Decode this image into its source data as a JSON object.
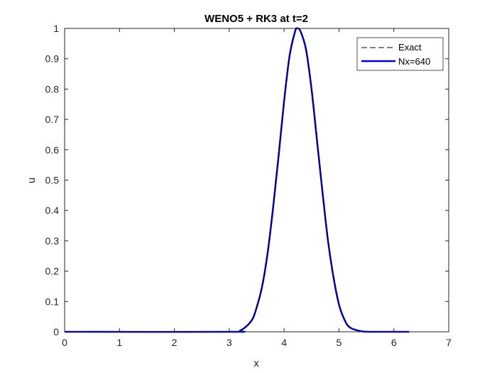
{
  "chart_data": {
    "type": "line",
    "title": "WENO5 + RK3 at t=2",
    "xlabel": "x",
    "ylabel": "u",
    "xlim": [
      0,
      7
    ],
    "ylim": [
      0,
      1
    ],
    "xticks": [
      "0",
      "1",
      "2",
      "3",
      "4",
      "5",
      "6",
      "7"
    ],
    "yticks": [
      "0",
      "0.1",
      "0.2",
      "0.3",
      "0.4",
      "0.5",
      "0.6",
      "0.7",
      "0.8",
      "0.9",
      "1"
    ],
    "grid": false,
    "legend_position": "top-right",
    "series": [
      {
        "name": "Exact",
        "style": "dashed",
        "color": "#000000",
        "x": [
          0,
          3.0,
          3.2,
          3.4,
          3.5,
          3.6,
          3.7,
          3.8,
          3.9,
          4.0,
          4.1,
          4.2,
          4.24,
          4.3,
          4.4,
          4.5,
          4.6,
          4.7,
          4.8,
          4.9,
          5.0,
          5.1,
          5.2,
          5.4,
          5.6,
          6.28
        ],
        "y": [
          0,
          0,
          0.004,
          0.035,
          0.08,
          0.15,
          0.26,
          0.41,
          0.58,
          0.76,
          0.91,
          0.99,
          1.0,
          0.99,
          0.93,
          0.8,
          0.63,
          0.46,
          0.3,
          0.18,
          0.09,
          0.04,
          0.014,
          0.002,
          0,
          0
        ]
      },
      {
        "name": "Nx=640",
        "style": "solid",
        "color": "#0000CC",
        "x": [
          0,
          3.0,
          3.2,
          3.4,
          3.5,
          3.6,
          3.7,
          3.8,
          3.9,
          4.0,
          4.1,
          4.2,
          4.24,
          4.3,
          4.4,
          4.5,
          4.6,
          4.7,
          4.8,
          4.9,
          5.0,
          5.1,
          5.2,
          5.4,
          5.6,
          6.28
        ],
        "y": [
          0,
          0,
          0.004,
          0.035,
          0.08,
          0.15,
          0.26,
          0.41,
          0.58,
          0.76,
          0.91,
          0.99,
          1.0,
          0.99,
          0.93,
          0.8,
          0.63,
          0.46,
          0.3,
          0.18,
          0.09,
          0.04,
          0.014,
          0.002,
          0,
          0
        ]
      }
    ]
  }
}
